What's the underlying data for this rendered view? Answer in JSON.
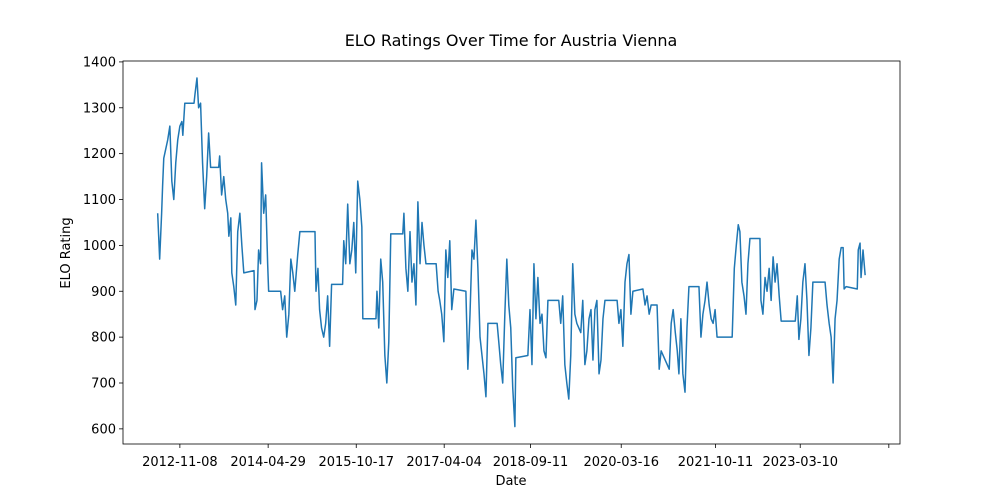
{
  "chart_data": {
    "type": "line",
    "title": "ELO Ratings Over Time for Austria Vienna",
    "xlabel": "Date",
    "ylabel": "ELO Rating",
    "color": "#1f77b4",
    "grid": false,
    "xlim": [
      "2011-11-28",
      "2024-11-06"
    ],
    "ylim": [
      567,
      1402
    ],
    "xticks": [
      "2012-11-08",
      "2014-04-29",
      "2015-10-17",
      "2017-04-04",
      "2018-09-11",
      "2020-03-16",
      "2021-10-11",
      "2023-03-10",
      {
        "value": "2024-08-30",
        "label": null
      }
    ],
    "yticks": [
      600,
      700,
      800,
      900,
      1000,
      1100,
      1200,
      1300,
      1400
    ],
    "x": [
      "2012-06-26",
      "2012-07-08",
      "2012-07-20",
      "2012-07-26",
      "2012-08-02",
      "2012-08-14",
      "2012-08-26",
      "2012-09-08",
      "2012-09-20",
      "2012-10-02",
      "2012-10-14",
      "2012-10-26",
      "2012-11-08",
      "2012-11-20",
      "2012-11-26",
      "2012-12-08",
      "2013-02-02",
      "2013-02-08",
      "2013-02-20",
      "2013-03-02",
      "2013-03-14",
      "2013-03-26",
      "2013-04-08",
      "2013-04-20",
      "2013-05-02",
      "2013-05-14",
      "2013-07-02",
      "2013-07-08",
      "2013-07-20",
      "2013-08-02",
      "2013-08-14",
      "2013-08-26",
      "2013-09-02",
      "2013-09-14",
      "2013-09-20",
      "2013-10-02",
      "2013-10-14",
      "2013-10-26",
      "2013-11-08",
      "2013-11-20",
      "2013-12-02",
      "2014-02-02",
      "2014-02-08",
      "2014-02-20",
      "2014-03-02",
      "2014-03-14",
      "2014-03-20",
      "2014-04-02",
      "2014-04-14",
      "2014-04-26",
      "2014-05-02",
      "2014-07-14",
      "2014-07-26",
      "2014-08-08",
      "2014-08-20",
      "2014-09-02",
      "2014-09-14",
      "2014-09-26",
      "2014-10-08",
      "2014-10-26",
      "2014-11-08",
      "2015-02-08",
      "2015-02-14",
      "2015-02-26",
      "2015-03-08",
      "2015-03-20",
      "2015-04-02",
      "2015-04-14",
      "2015-04-26",
      "2015-05-08",
      "2015-05-20",
      "2015-07-26",
      "2015-08-02",
      "2015-08-14",
      "2015-08-26",
      "2015-09-08",
      "2015-09-20",
      "2015-10-02",
      "2015-10-14",
      "2015-10-26",
      "2015-11-08",
      "2015-11-20",
      "2015-11-26",
      "2016-02-14",
      "2016-02-20",
      "2016-03-02",
      "2016-03-14",
      "2016-03-26",
      "2016-04-08",
      "2016-04-20",
      "2016-05-02",
      "2016-05-14",
      "2016-07-26",
      "2016-08-02",
      "2016-08-14",
      "2016-08-26",
      "2016-09-08",
      "2016-09-20",
      "2016-10-02",
      "2016-10-14",
      "2016-10-26",
      "2016-11-08",
      "2016-11-20",
      "2016-12-02",
      "2016-12-14",
      "2017-02-14",
      "2017-02-26",
      "2017-03-08",
      "2017-03-20",
      "2017-04-02",
      "2017-04-14",
      "2017-04-26",
      "2017-05-08",
      "2017-05-20",
      "2017-06-02",
      "2017-08-14",
      "2017-08-26",
      "2017-09-08",
      "2017-09-20",
      "2017-10-02",
      "2017-10-14",
      "2017-10-26",
      "2017-11-08",
      "2017-11-20",
      "2017-12-02",
      "2017-12-14",
      "2017-12-26",
      "2018-02-20",
      "2018-03-02",
      "2018-03-14",
      "2018-03-26",
      "2018-04-08",
      "2018-04-20",
      "2018-05-02",
      "2018-05-14",
      "2018-05-26",
      "2018-06-08",
      "2018-06-14",
      "2018-08-26",
      "2018-09-08",
      "2018-09-20",
      "2018-10-02",
      "2018-10-14",
      "2018-10-26",
      "2018-11-08",
      "2018-11-20",
      "2018-12-02",
      "2018-12-14",
      "2018-12-26",
      "2019-03-02",
      "2019-03-14",
      "2019-03-26",
      "2019-04-08",
      "2019-04-20",
      "2019-05-02",
      "2019-05-14",
      "2019-05-26",
      "2019-06-08",
      "2019-06-20",
      "2019-07-02",
      "2019-07-14",
      "2019-07-26",
      "2019-08-08",
      "2019-08-20",
      "2019-09-02",
      "2019-09-14",
      "2019-09-26",
      "2019-10-08",
      "2019-10-20",
      "2019-11-02",
      "2019-11-14",
      "2019-11-26",
      "2019-12-08",
      "2020-02-20",
      "2020-03-02",
      "2020-03-14",
      "2020-03-26",
      "2020-04-08",
      "2020-04-20",
      "2020-05-02",
      "2020-05-14",
      "2020-05-26",
      "2020-07-26",
      "2020-08-08",
      "2020-08-20",
      "2020-09-02",
      "2020-09-14",
      "2020-10-20",
      "2020-11-02",
      "2020-11-14",
      "2021-01-02",
      "2021-01-14",
      "2021-01-26",
      "2021-02-08",
      "2021-02-20",
      "2021-03-02",
      "2021-03-14",
      "2021-03-26",
      "2021-04-08",
      "2021-04-20",
      "2021-05-02",
      "2021-07-02",
      "2021-07-14",
      "2021-07-26",
      "2021-08-08",
      "2021-08-20",
      "2021-09-02",
      "2021-09-14",
      "2021-09-26",
      "2021-10-08",
      "2021-10-20",
      "2022-01-20",
      "2022-02-02",
      "2022-02-14",
      "2022-02-26",
      "2022-03-08",
      "2022-03-20",
      "2022-04-02",
      "2022-04-14",
      "2022-04-26",
      "2022-05-08",
      "2022-07-08",
      "2022-07-14",
      "2022-07-26",
      "2022-08-08",
      "2022-08-20",
      "2022-09-02",
      "2022-09-14",
      "2022-09-26",
      "2022-10-08",
      "2022-10-20",
      "2022-11-02",
      "2022-11-14",
      "2023-02-08",
      "2023-02-20",
      "2023-03-02",
      "2023-03-14",
      "2023-03-26",
      "2023-04-08",
      "2023-04-20",
      "2023-05-02",
      "2023-05-14",
      "2023-05-26",
      "2023-08-08",
      "2023-08-20",
      "2023-09-02",
      "2023-09-14",
      "2023-09-26",
      "2023-10-08",
      "2023-10-20",
      "2023-11-02",
      "2023-11-14",
      "2023-11-26",
      "2023-12-02",
      "2023-12-14",
      "2024-02-20",
      "2024-02-26",
      "2024-03-08",
      "2024-03-14",
      "2024-03-26",
      "2024-04-08"
    ],
    "values": [
      1070,
      970,
      1070,
      1130,
      1190,
      1210,
      1230,
      1260,
      1140,
      1100,
      1180,
      1230,
      1260,
      1270,
      1240,
      1310,
      1310,
      1330,
      1365,
      1300,
      1310,
      1180,
      1080,
      1150,
      1245,
      1170,
      1170,
      1195,
      1110,
      1150,
      1100,
      1070,
      1020,
      1060,
      940,
      910,
      870,
      1030,
      1070,
      1000,
      940,
      945,
      860,
      880,
      990,
      960,
      1180,
      1070,
      1110,
      960,
      900,
      900,
      860,
      890,
      800,
      850,
      970,
      940,
      900,
      980,
      1030,
      1030,
      900,
      950,
      860,
      820,
      800,
      830,
      890,
      780,
      915,
      915,
      1010,
      960,
      1090,
      960,
      990,
      1050,
      940,
      1140,
      1100,
      1040,
      840,
      840,
      900,
      820,
      970,
      920,
      760,
      700,
      790,
      1025,
      1025,
      1070,
      950,
      900,
      1030,
      920,
      960,
      870,
      1095,
      960,
      1050,
      1000,
      960,
      960,
      900,
      880,
      850,
      790,
      990,
      930,
      1010,
      860,
      905,
      900,
      730,
      850,
      990,
      970,
      1055,
      950,
      800,
      760,
      720,
      670,
      830,
      830,
      790,
      740,
      700,
      850,
      970,
      870,
      820,
      690,
      605,
      755,
      760,
      860,
      740,
      960,
      840,
      930,
      830,
      850,
      770,
      755,
      880,
      880,
      830,
      890,
      740,
      700,
      665,
      760,
      960,
      850,
      830,
      820,
      810,
      880,
      740,
      770,
      840,
      860,
      750,
      860,
      880,
      720,
      750,
      840,
      880,
      880,
      830,
      860,
      780,
      920,
      960,
      980,
      850,
      900,
      905,
      870,
      890,
      850,
      870,
      870,
      730,
      770,
      730,
      830,
      860,
      810,
      770,
      720,
      840,
      720,
      680,
      820,
      910,
      910,
      800,
      850,
      880,
      920,
      870,
      840,
      830,
      860,
      800,
      800,
      950,
      1000,
      1045,
      1030,
      920,
      890,
      850,
      960,
      1015,
      1015,
      880,
      850,
      930,
      900,
      950,
      880,
      975,
      920,
      960,
      890,
      835,
      835,
      890,
      795,
      840,
      920,
      960,
      880,
      760,
      820,
      920,
      920,
      870,
      830,
      800,
      700,
      840,
      880,
      970,
      995,
      995,
      905,
      910,
      905,
      990,
      1005,
      930,
      990,
      935
    ]
  }
}
